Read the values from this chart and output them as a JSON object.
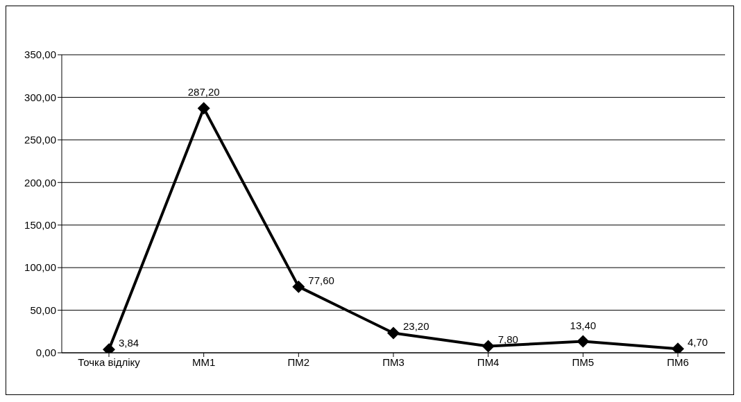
{
  "chart_data": {
    "type": "line",
    "categories": [
      "Точка відліку",
      "ММ1",
      "ПМ2",
      "ПМ3",
      "ПМ4",
      "ПМ5",
      "ПМ6"
    ],
    "series": [
      {
        "color": "#000000",
        "values": [
          3.84,
          287.2,
          77.6,
          23.2,
          7.8,
          13.4,
          4.7
        ],
        "value_labels": [
          "3,84",
          "287,20",
          "77,60",
          "23,20",
          "7,80",
          "13,40",
          "4,70"
        ]
      }
    ],
    "ylim": [
      0,
      350
    ],
    "yticks": [
      {
        "value": 0,
        "label": "0,00"
      },
      {
        "value": 50,
        "label": "50,00"
      },
      {
        "value": 100,
        "label": "100,00"
      },
      {
        "value": 150,
        "label": "150,00"
      },
      {
        "value": 200,
        "label": "200,00"
      },
      {
        "value": 250,
        "label": "250,00"
      },
      {
        "value": 300,
        "label": "300,00"
      },
      {
        "value": 350,
        "label": "350,00"
      }
    ],
    "grid": "y",
    "legend": false,
    "marker": "diamond",
    "line_style": "solid"
  }
}
